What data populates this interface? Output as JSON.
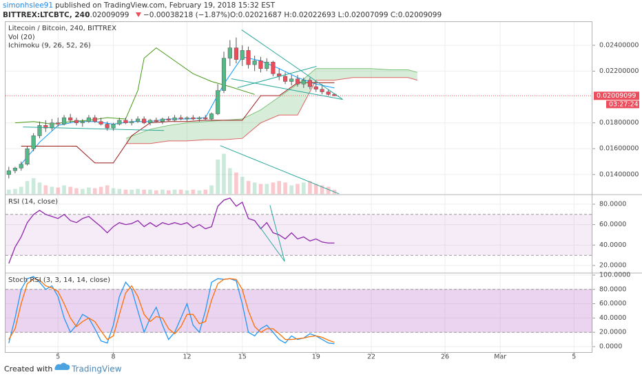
{
  "header": {
    "publisher": "simonhslee91",
    "published": "published on TradingView.com, February 19, 2018 15:32 EST",
    "symbol": "BITTREX:LTCBTC, 240",
    "last": "0.02009099",
    "change": "−0.00038218 (−1.87%)",
    "ohlc": "O:0.02021687 H:0.02022693 L:0.02007099 C:0.02009099"
  },
  "footer": {
    "created": "Created with",
    "brand": "TradingView"
  },
  "chart_data": [
    {
      "type": "candlestick",
      "title": "Litecoin / Bitcoin, 240, BITTREX",
      "indicators": [
        "Vol (20)",
        "Ichimoku (9, 26, 52, 26)"
      ],
      "up_color": "#53b987",
      "down_color": "#eb4d5c",
      "xlim": [
        2.15,
        34.0
      ],
      "xticks": [
        5,
        8,
        12,
        15,
        19,
        22,
        26,
        {
          "value": 29,
          "label": "Mar"
        },
        {
          "value": 33,
          "label": "5"
        }
      ],
      "ylim": [
        0.0125,
        0.0258
      ],
      "yticks": [
        {
          "value": 0.014,
          "label": "0.01400000"
        },
        {
          "value": 0.016,
          "label": "0.01600000"
        },
        {
          "value": 0.018,
          "label": "0.01800000"
        },
        {
          "value": 0.022,
          "label": "0.02200000"
        },
        {
          "value": 0.024,
          "label": "0.02400000"
        }
      ],
      "grid": true,
      "x": [
        2.33,
        2.67,
        3.0,
        3.33,
        3.67,
        4.0,
        4.33,
        4.67,
        5.0,
        5.33,
        5.67,
        6.0,
        6.33,
        6.67,
        7.0,
        7.33,
        7.67,
        8.0,
        8.33,
        8.67,
        9.0,
        9.33,
        9.67,
        10.0,
        10.33,
        10.67,
        11.0,
        11.33,
        11.67,
        12.0,
        12.33,
        12.67,
        13.0,
        13.33,
        13.67,
        14.0,
        14.33,
        14.67,
        15.0,
        15.33,
        15.67,
        16.0,
        16.33,
        16.67,
        17.0,
        17.33,
        17.67,
        18.0,
        18.33,
        18.67,
        19.0,
        19.33,
        19.67,
        20.0
      ],
      "open": [
        0.014,
        0.0143,
        0.0145,
        0.0148,
        0.016,
        0.017,
        0.0178,
        0.0176,
        0.018,
        0.0179,
        0.0184,
        0.0182,
        0.018,
        0.0181,
        0.0184,
        0.0181,
        0.0179,
        0.0176,
        0.0179,
        0.0182,
        0.018,
        0.0181,
        0.0183,
        0.018,
        0.0182,
        0.0181,
        0.0183,
        0.0182,
        0.0184,
        0.0183,
        0.0184,
        0.0183,
        0.0184,
        0.0183,
        0.0187,
        0.0205,
        0.023,
        0.0238,
        0.0229,
        0.0236,
        0.0225,
        0.0228,
        0.0222,
        0.0227,
        0.0218,
        0.0216,
        0.0212,
        0.0214,
        0.021,
        0.0213,
        0.0208,
        0.0206,
        0.0204,
        0.02021687
      ],
      "high": [
        0.0146,
        0.0146,
        0.015,
        0.0162,
        0.0172,
        0.0181,
        0.0182,
        0.0183,
        0.0184,
        0.0186,
        0.0187,
        0.0184,
        0.0183,
        0.0186,
        0.0186,
        0.0184,
        0.0181,
        0.018,
        0.0184,
        0.0184,
        0.0183,
        0.0185,
        0.0185,
        0.0183,
        0.0184,
        0.0184,
        0.0185,
        0.0186,
        0.0186,
        0.0185,
        0.0186,
        0.0185,
        0.0186,
        0.0188,
        0.021,
        0.0235,
        0.0244,
        0.0246,
        0.024,
        0.0239,
        0.0232,
        0.0231,
        0.023,
        0.0228,
        0.0222,
        0.0219,
        0.0217,
        0.0217,
        0.0215,
        0.0215,
        0.0212,
        0.021,
        0.0206,
        0.02022693
      ],
      "low": [
        0.0137,
        0.0141,
        0.0143,
        0.0147,
        0.0158,
        0.0168,
        0.0173,
        0.0174,
        0.0177,
        0.0178,
        0.018,
        0.0178,
        0.0177,
        0.018,
        0.018,
        0.0178,
        0.0174,
        0.0174,
        0.0178,
        0.0179,
        0.0178,
        0.018,
        0.0179,
        0.0178,
        0.018,
        0.0179,
        0.0181,
        0.0181,
        0.0182,
        0.0181,
        0.0182,
        0.0181,
        0.0182,
        0.0182,
        0.0186,
        0.0203,
        0.0224,
        0.0226,
        0.0224,
        0.0222,
        0.022,
        0.0219,
        0.022,
        0.0216,
        0.0213,
        0.021,
        0.0209,
        0.0208,
        0.0207,
        0.0206,
        0.0204,
        0.0202,
        0.0201,
        0.02007099
      ],
      "close": [
        0.0143,
        0.0145,
        0.0148,
        0.016,
        0.017,
        0.0178,
        0.0176,
        0.018,
        0.0179,
        0.0184,
        0.0182,
        0.018,
        0.0181,
        0.0184,
        0.0181,
        0.0179,
        0.0176,
        0.0179,
        0.0182,
        0.018,
        0.0181,
        0.0183,
        0.018,
        0.0182,
        0.0181,
        0.0183,
        0.0182,
        0.0184,
        0.0183,
        0.0184,
        0.0183,
        0.0184,
        0.0183,
        0.0187,
        0.0205,
        0.023,
        0.0238,
        0.0229,
        0.0236,
        0.0225,
        0.0228,
        0.0222,
        0.0227,
        0.0218,
        0.0216,
        0.0212,
        0.0214,
        0.021,
        0.0213,
        0.0208,
        0.0206,
        0.0204,
        0.0202,
        0.02009099
      ],
      "volume": {
        "ylim": [
          0,
          12000
        ],
        "values": [
          300,
          350,
          500,
          900,
          1100,
          800,
          600,
          500,
          450,
          600,
          500,
          400,
          350,
          450,
          400,
          500,
          600,
          400,
          350,
          300,
          300,
          350,
          300,
          300,
          250,
          300,
          250,
          300,
          300,
          250,
          300,
          250,
          300,
          600,
          2400,
          2800,
          1800,
          1500,
          1200,
          900,
          800,
          700,
          700,
          800,
          900,
          800,
          600,
          700,
          800,
          900,
          700,
          600,
          500,
          300
        ]
      },
      "ichimoku": [
        {
          "color": "#0496ff",
          "x": [
            3,
            4,
            5,
            6,
            7,
            8,
            9,
            10,
            11,
            12,
            13,
            14,
            15,
            16,
            17,
            18,
            19,
            20
          ],
          "values": [
            0.0148,
            0.0165,
            0.0178,
            0.0181,
            0.0181,
            0.0179,
            0.0181,
            0.0181,
            0.0183,
            0.0183,
            0.0184,
            0.021,
            0.0231,
            0.0228,
            0.0222,
            0.0215,
            0.021,
            0.0207
          ]
        },
        {
          "color": "#991515",
          "x": [
            3,
            4,
            5,
            6,
            7,
            8,
            9,
            10,
            11,
            12,
            13,
            14,
            15,
            16,
            17,
            18,
            19,
            20
          ],
          "values": [
            0.0162,
            0.0162,
            0.0162,
            0.0162,
            0.0149,
            0.0149,
            0.017,
            0.018,
            0.0181,
            0.0181,
            0.0182,
            0.0182,
            0.0182,
            0.0201,
            0.0201,
            0.0211,
            0.0211,
            0.0211
          ]
        },
        {
          "color": "#459915",
          "x": [
            2.67,
            3.67,
            4.67,
            5.67,
            6.67,
            7.67,
            8.67,
            9.33,
            9.67,
            10.33,
            11.33,
            12.33,
            13.33,
            14.33,
            15.67
          ],
          "values": [
            0.018,
            0.0181,
            0.0179,
            0.0181,
            0.0182,
            0.0184,
            0.0183,
            0.0205,
            0.023,
            0.0238,
            0.0228,
            0.0218,
            0.0212,
            0.0208,
            0.0202
          ]
        }
      ],
      "cloud": {
        "color_a": "#7dc47d",
        "color_b": "#e06060",
        "fill": "rgba(76,175,80,0.22)",
        "x": [
          8.7,
          10,
          11,
          12,
          13,
          14,
          15,
          16,
          17,
          18,
          19,
          20,
          21,
          22,
          23,
          24,
          24.5
        ],
        "span_a": [
          0.0168,
          0.0175,
          0.0178,
          0.018,
          0.0181,
          0.0182,
          0.0183,
          0.019,
          0.02,
          0.021,
          0.0222,
          0.0222,
          0.0222,
          0.0222,
          0.0221,
          0.0221,
          0.0219
        ],
        "span_b": [
          0.0164,
          0.0164,
          0.0166,
          0.0166,
          0.0167,
          0.0167,
          0.0168,
          0.018,
          0.0186,
          0.0186,
          0.0213,
          0.0213,
          0.0215,
          0.0215,
          0.0215,
          0.0215,
          0.0213
        ]
      },
      "trendline_color": "#26a69a",
      "trendlines": [
        {
          "x": [
            14.96,
            20.45
          ],
          "y": [
            0.0252,
            0.01981
          ]
        },
        {
          "x": [
            14.4,
            20.45
          ],
          "y": [
            0.02141,
            0.01981
          ]
        },
        {
          "x": [
            14.74,
            19.03
          ],
          "y": [
            0.02072,
            0.02237
          ]
        },
        {
          "x": [
            3.1,
            10.75
          ],
          "y": [
            0.01768,
            0.01741
          ]
        },
        {
          "x": [
            13.8,
            20.25
          ],
          "y": [
            0.01624,
            0.01251
          ]
        }
      ],
      "last": 0.02009099,
      "last_color": "#eb4d5c",
      "countdown": "03:27:24"
    },
    {
      "type": "line",
      "title": "RSI (14, close)",
      "ylim": [
        13.3,
        88.7
      ],
      "yticks": [
        {
          "value": 20,
          "label": "20.0000"
        },
        {
          "value": 40,
          "label": "40.0000"
        },
        {
          "value": 60,
          "label": "60.0000"
        },
        {
          "value": 80,
          "label": "80.0000"
        }
      ],
      "bands": [
        30,
        70
      ],
      "band_color": "rgba(156,39,176,0.09)",
      "series": [
        {
          "color": "#8e24aa",
          "values": [
            22,
            38,
            48,
            62,
            70,
            74,
            70,
            68,
            66,
            70,
            64,
            62,
            66,
            68,
            63,
            58,
            52,
            58,
            62,
            60,
            61,
            64,
            58,
            62,
            58,
            62,
            60,
            62,
            60,
            62,
            57,
            60,
            56,
            58,
            78,
            84,
            86,
            78,
            82,
            66,
            64,
            56,
            62,
            52,
            50,
            46,
            52,
            46,
            48,
            44,
            46,
            43,
            42,
            42
          ]
        }
      ],
      "trendline_color": "#26a69a",
      "trendlines": [
        {
          "x": [
            16.5,
            17.3
          ],
          "y": [
            79,
            24
          ]
        },
        {
          "x": [
            15.9,
            17.3
          ],
          "y": [
            59,
            24
          ]
        }
      ]
    },
    {
      "type": "line",
      "title": "Stoch RSI (3, 3, 14, 14, close)",
      "ylim": [
        -7.7,
        101.9
      ],
      "yticks": [
        {
          "value": 0,
          "label": "0.0000"
        },
        {
          "value": 20,
          "label": "20.0000"
        },
        {
          "value": 40,
          "label": "40.0000"
        },
        {
          "value": 60,
          "label": "60.0000"
        },
        {
          "value": 80,
          "label": "80.0000"
        },
        {
          "value": 100,
          "label": "100.0000"
        }
      ],
      "bands": [
        20,
        80
      ],
      "band_color": "rgba(156,39,176,0.2)",
      "series": [
        {
          "color": "#2196f3",
          "values": [
            5,
            40,
            80,
            95,
            98,
            90,
            80,
            85,
            70,
            40,
            20,
            30,
            45,
            40,
            25,
            8,
            5,
            30,
            70,
            90,
            80,
            50,
            20,
            40,
            55,
            30,
            10,
            20,
            40,
            60,
            30,
            20,
            50,
            90,
            95,
            94,
            95,
            92,
            60,
            20,
            15,
            25,
            30,
            20,
            10,
            5,
            15,
            10,
            12,
            18,
            15,
            10,
            5,
            4
          ]
        },
        {
          "color": "#ff6d00",
          "values": [
            10,
            25,
            60,
            88,
            95,
            93,
            85,
            82,
            77,
            60,
            40,
            28,
            35,
            40,
            35,
            22,
            10,
            15,
            45,
            75,
            85,
            70,
            45,
            35,
            42,
            40,
            25,
            18,
            28,
            45,
            45,
            32,
            35,
            65,
            88,
            94,
            95,
            94,
            80,
            50,
            28,
            20,
            25,
            25,
            18,
            10,
            10,
            11,
            12,
            14,
            15,
            13,
            9,
            6
          ]
        }
      ]
    }
  ]
}
